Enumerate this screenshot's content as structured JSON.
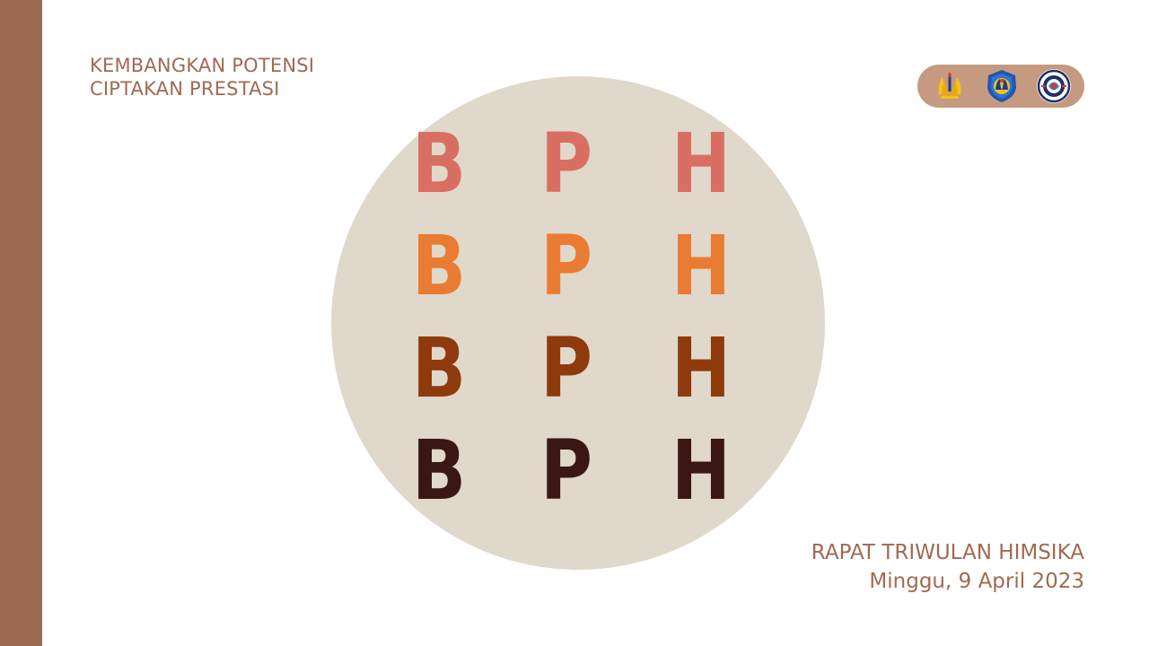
{
  "tagline": {
    "line1": "KEMBANGKAN POTENSI",
    "line2": "CIPTAKAN PRESTASI"
  },
  "logos": [
    "university-logo-icon",
    "faculty-logo-icon",
    "himsika-logo-icon"
  ],
  "emblem": {
    "rows": [
      {
        "letters": [
          "B",
          "P",
          "H"
        ],
        "color": "#d86f62"
      },
      {
        "letters": [
          "B",
          "P",
          "H"
        ],
        "color": "#ea7b33"
      },
      {
        "letters": [
          "B",
          "P",
          "H"
        ],
        "color": "#8f3a0c"
      },
      {
        "letters": [
          "B",
          "P",
          "H"
        ],
        "color": "#3a1714"
      }
    ]
  },
  "event": {
    "title": "RAPAT TRIWULAN HIMSIKA",
    "date": "Minggu, 9 April 2023"
  },
  "colors": {
    "accent": "#9c6a52",
    "text": "#a06a52",
    "circle": "#dfd8cb",
    "logo_pill": "#c69a80"
  }
}
